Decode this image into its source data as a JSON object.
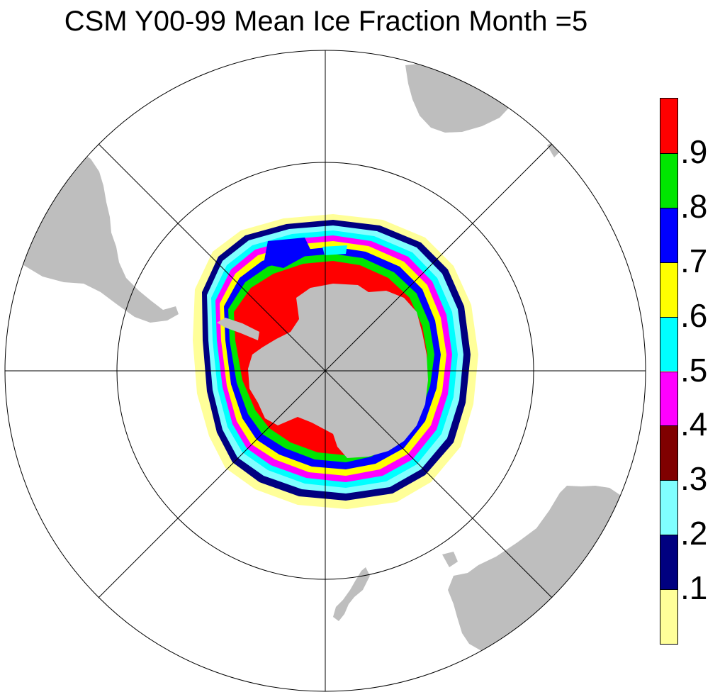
{
  "title": "CSM Y00-99 Mean Ice Fraction Month =5",
  "map": {
    "projection": "south-polar-stereographic",
    "land_color": "#bebebe",
    "ocean_color": "#ffffff",
    "grid_color": "#000000"
  },
  "legend": {
    "colors": [
      "#ff0000",
      "#00e600",
      "#0000ff",
      "#ffff00",
      "#00ffff",
      "#ff00ff",
      "#800000",
      "#80ffff",
      "#000080",
      "#ffff99"
    ],
    "labels": [
      ".9",
      ".8",
      ".7",
      ".6",
      ".5",
      ".4",
      ".3",
      ".2",
      ".1"
    ]
  }
}
